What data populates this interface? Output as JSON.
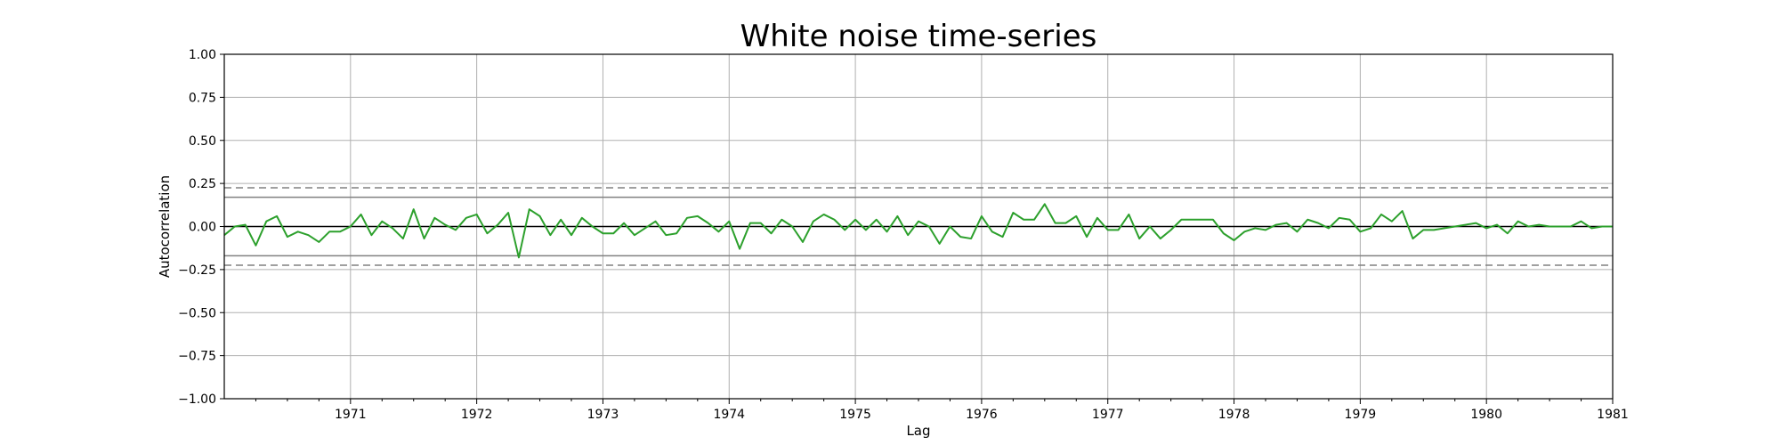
{
  "chart_data": {
    "type": "line",
    "title": "White noise time-series",
    "xlabel": "Lag",
    "ylabel": "Autocorrelation",
    "xlim": [
      "1970-01",
      "1981-01"
    ],
    "ylim": [
      -1.0,
      1.0
    ],
    "x_ticks": [
      "1971",
      "1972",
      "1973",
      "1974",
      "1975",
      "1976",
      "1977",
      "1978",
      "1979",
      "1980",
      "1981"
    ],
    "y_ticks": [
      "1.00",
      "0.75",
      "0.50",
      "0.25",
      "0.00",
      "−0.25",
      "−0.50",
      "−0.75",
      "−1.00"
    ],
    "grid": true,
    "confidence_bands": {
      "solid": 0.17,
      "dashed": 0.225
    },
    "colors": {
      "series": "#2ca02c",
      "bands": "#808080",
      "grid": "#b0b0b0",
      "zero_line": "#000000"
    },
    "series": [
      {
        "start": "1970-01",
        "step_months": 1,
        "values": [
          -0.05,
          0.0,
          0.01,
          -0.11,
          0.03,
          0.06,
          -0.06,
          -0.03,
          -0.05,
          -0.09,
          -0.03,
          -0.03,
          0.0,
          0.07,
          -0.05,
          0.03,
          -0.01,
          -0.07,
          0.1,
          -0.07,
          0.05,
          0.01,
          -0.02,
          0.05,
          0.07,
          -0.04,
          0.01,
          0.08,
          -0.18,
          0.1,
          0.06,
          -0.05,
          0.04,
          -0.05,
          0.05,
          0.0,
          -0.04,
          -0.04,
          0.02,
          -0.05,
          -0.01,
          0.03,
          -0.05,
          -0.04,
          0.05,
          0.06,
          0.02,
          -0.03,
          0.03,
          -0.13,
          0.02,
          0.02,
          -0.04,
          0.04,
          0.0,
          -0.09,
          0.03,
          0.07,
          0.04,
          -0.02,
          0.04,
          -0.02,
          0.04,
          -0.03,
          0.06,
          -0.05,
          0.03,
          0.0,
          -0.1,
          0.0,
          -0.06,
          -0.07,
          0.06,
          -0.03,
          -0.06,
          0.08,
          0.04,
          0.04,
          0.13,
          0.02,
          0.02,
          0.06,
          -0.06,
          0.05,
          -0.02,
          -0.02,
          0.07,
          -0.07,
          0.0,
          -0.07,
          -0.02,
          0.04,
          0.04,
          0.04,
          0.04,
          -0.04,
          -0.08,
          -0.03,
          -0.01,
          -0.02,
          0.01,
          0.02,
          -0.03,
          0.04,
          0.02,
          -0.01,
          0.05,
          0.04,
          -0.03,
          -0.01,
          0.07,
          0.03,
          0.09,
          -0.07,
          -0.02,
          -0.02,
          -0.01,
          0.0,
          0.01,
          0.02,
          -0.01,
          0.01,
          -0.04,
          0.03,
          0.0,
          0.01,
          0.0,
          0.0,
          0.0,
          0.03,
          -0.01,
          0.0,
          0.0
        ]
      }
    ]
  }
}
